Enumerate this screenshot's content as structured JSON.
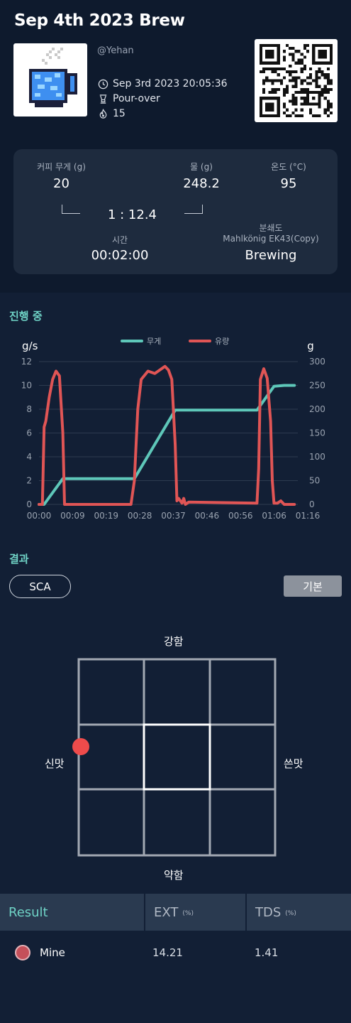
{
  "brew": {
    "title": "Sep 4th 2023 Brew",
    "user": "@Yehan",
    "datetime": "Sep 3rd 2023 20:05:36",
    "method": "Pour-over",
    "count": "15"
  },
  "recipe": {
    "coffee_label": "커피 무게 (g)",
    "coffee_value": "20",
    "water_label": "물 (g)",
    "water_value": "248.2",
    "temp_label": "온도 (°C)",
    "temp_value": "95",
    "ratio": "1 : 12.4",
    "time_label": "시간",
    "time_value": "00:02:00",
    "grinder_label": "분쇄도",
    "grinder_name": "Mahlkönig EK43(Copy)",
    "grinder_value": "Brewing"
  },
  "progress": {
    "title": "진행 중"
  },
  "chart_data": {
    "type": "line",
    "ylabel_left": "g/s",
    "ylabel_right": "g",
    "ylim_left": [
      0,
      12
    ],
    "ylim_right": [
      0,
      300
    ],
    "yticks_left": [
      "0",
      "2",
      "4",
      "6",
      "8",
      "10",
      "12"
    ],
    "yticks_right": [
      "0",
      "50",
      "100",
      "150",
      "200",
      "250",
      "300"
    ],
    "xticks": [
      "00:00",
      "00:09",
      "00:19",
      "00:28",
      "00:37",
      "00:46",
      "00:56",
      "01:06",
      "01:16"
    ],
    "xlim": [
      0,
      76
    ],
    "grid": true,
    "legend_position": "top-center",
    "series": [
      {
        "name": "무게",
        "axis": "right",
        "color": "#5ec7b9",
        "x": [
          0,
          1.5,
          7,
          28,
          40,
          64,
          69,
          72,
          75
        ],
        "y": [
          0,
          0,
          54,
          54,
          198,
          198,
          248,
          250,
          250
        ]
      },
      {
        "name": "유량",
        "axis": "left",
        "color": "#e05555",
        "x": [
          0,
          1,
          1.5,
          2,
          3,
          4,
          5,
          6,
          7,
          7.5,
          8,
          27,
          28,
          29,
          30,
          32,
          34,
          36,
          37,
          38,
          39,
          40,
          40.5,
          41,
          42,
          42.5,
          43,
          44,
          64,
          64.5,
          65,
          66,
          67,
          68,
          68.5,
          69,
          70,
          71,
          72,
          75
        ],
        "y": [
          0,
          0,
          6.5,
          7,
          9,
          10.5,
          11.2,
          10.8,
          6,
          0,
          0,
          0,
          2,
          8,
          10.5,
          11.2,
          11,
          11.4,
          11.6,
          11.3,
          10.5,
          5,
          0.3,
          0.5,
          0.1,
          0.5,
          0,
          0.2,
          0.1,
          3,
          10.5,
          11.4,
          10.6,
          7,
          2,
          0.1,
          0.1,
          0.3,
          0,
          0
        ]
      }
    ]
  },
  "result": {
    "title": "결과",
    "sca_label": "SCA",
    "basic_label": "기본",
    "strong_label": "강함",
    "weak_label": "약함",
    "sour_label": "신맛",
    "bitter_label": "쓴맛",
    "marker_color": "#ee4b4b",
    "marker_ext": 14.21,
    "marker_tds": 1.41
  },
  "table": {
    "col_result": "Result",
    "col_ext": "EXT",
    "col_ext_unit": "(%)",
    "col_tds": "TDS",
    "col_tds_unit": "(%)",
    "row_name": "Mine",
    "row_ext": "14.21",
    "row_tds": "1.41"
  },
  "colors": {
    "accent": "#6fd3c6",
    "background": "#121f35",
    "panel": "#1e2b3e"
  }
}
